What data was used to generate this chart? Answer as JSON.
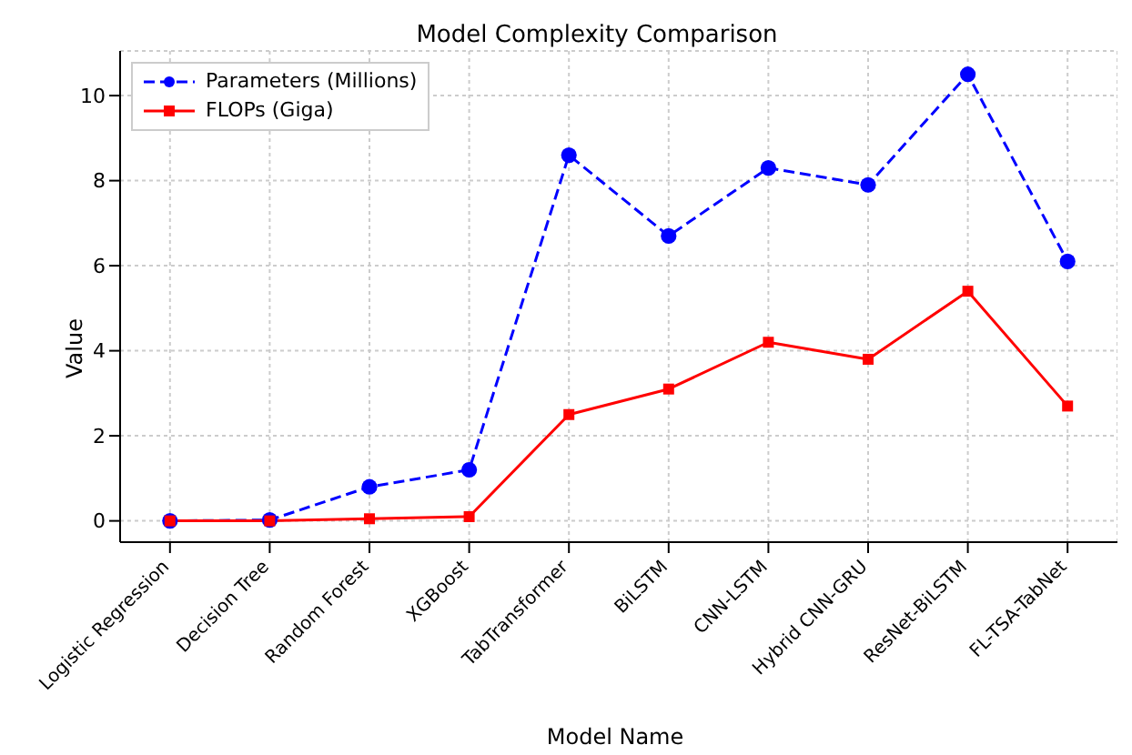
{
  "chart_data": {
    "type": "line",
    "title": "Model Complexity Comparison",
    "xlabel": "Model Name",
    "ylabel": "Value",
    "categories": [
      "Logistic Regression",
      "Decision Tree",
      "Random Forest",
      "XGBoost",
      "TabTransformer",
      "BiLSTM",
      "CNN-LSTM",
      "Hybrid CNN-GRU",
      "ResNet-BiLSTM",
      "FL-TSA-TabNet"
    ],
    "series": [
      {
        "name": "Parameters (Millions)",
        "color": "#0000ff",
        "values": [
          0,
          0.02,
          0.8,
          1.2,
          8.6,
          6.7,
          8.3,
          7.9,
          10.5,
          6.1
        ],
        "line_style": "dashed",
        "marker": "circle"
      },
      {
        "name": "FLOPs (Giga)",
        "color": "#ff0000",
        "values": [
          0,
          0,
          0.05,
          0.1,
          2.5,
          3.1,
          4.2,
          3.8,
          5.4,
          2.7
        ],
        "line_style": "solid",
        "marker": "square"
      }
    ],
    "ylim": [
      -0.5,
      11.05
    ],
    "yticks": [
      0,
      2,
      4,
      6,
      8,
      10
    ],
    "grid": true,
    "legend": "top left"
  }
}
